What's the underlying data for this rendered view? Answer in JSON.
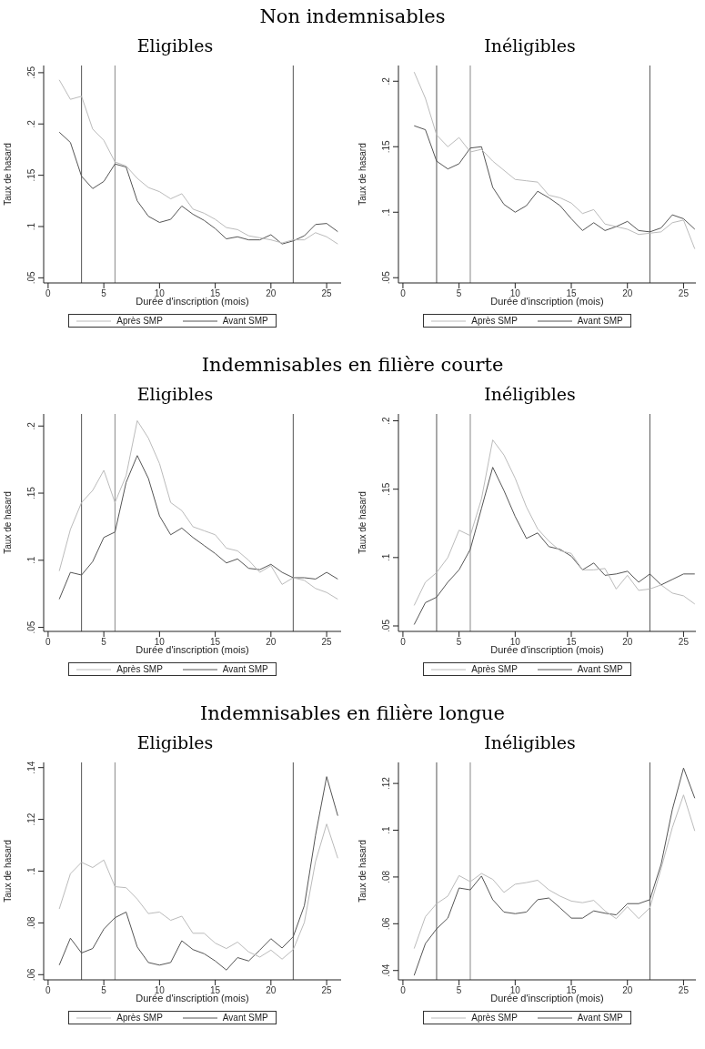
{
  "chart_data": [
    {
      "type": "line",
      "annotations": [
        "Non indemnisables"
      ],
      "title": "Eligibles",
      "xlabel": "Durée d'inscription (mois)",
      "ylabel": "Taux de hasard",
      "marker": "none",
      "legend": "bottom",
      "x": [
        1,
        2,
        3,
        4,
        5,
        6,
        7,
        8,
        9,
        10,
        11,
        12,
        13,
        14,
        15,
        16,
        17,
        18,
        19,
        20,
        21,
        22,
        23,
        24,
        25,
        26
      ],
      "xlim": [
        -0.4,
        26.3
      ],
      "xticks": [
        0,
        5,
        10,
        15,
        20,
        25
      ],
      "ylim": [
        0.045,
        0.257
      ],
      "yticks": [
        {
          "value": 0.05,
          "label": ".05"
        },
        {
          "value": 0.1,
          "label": ".1"
        },
        {
          "value": 0.15,
          "label": ".15"
        },
        {
          "value": 0.2,
          "label": ".2"
        },
        {
          "value": 0.25,
          "label": ".25"
        }
      ],
      "ref_lines": [
        {
          "axis": "x",
          "value": 3,
          "color": "#555555"
        },
        {
          "axis": "x",
          "value": 6,
          "color": "#888888"
        },
        {
          "axis": "x",
          "value": 22,
          "color": "#555555"
        }
      ],
      "series": [
        {
          "name": "Avant SMP",
          "color": "#555555",
          "values": [
            0.192,
            0.182,
            0.149,
            0.137,
            0.144,
            0.161,
            0.158,
            0.125,
            0.11,
            0.104,
            0.107,
            0.12,
            0.112,
            0.106,
            0.098,
            0.088,
            0.09,
            0.087,
            0.087,
            0.092,
            0.083,
            0.086,
            0.091,
            0.102,
            0.103,
            0.095
          ]
        },
        {
          "name": "Après SMP",
          "color": "#bbbbbb",
          "values": [
            0.243,
            0.224,
            0.227,
            0.195,
            0.184,
            0.163,
            0.159,
            0.147,
            0.138,
            0.134,
            0.127,
            0.132,
            0.117,
            0.113,
            0.107,
            0.099,
            0.097,
            0.091,
            0.089,
            0.087,
            0.084,
            0.087,
            0.087,
            0.094,
            0.09,
            0.083
          ]
        }
      ]
    },
    {
      "type": "line",
      "title": "Inéligibles",
      "xlabel": "Durée d'inscription (mois)",
      "ylabel": "Taux de hasard",
      "marker": "none",
      "legend": "bottom",
      "x": [
        1,
        2,
        3,
        4,
        5,
        6,
        7,
        8,
        9,
        10,
        11,
        12,
        13,
        14,
        15,
        16,
        17,
        18,
        19,
        20,
        21,
        22,
        23,
        24,
        25,
        26
      ],
      "xlim": [
        -0.4,
        26.1
      ],
      "xticks": [
        0,
        5,
        10,
        15,
        20,
        25
      ],
      "ylim": [
        0.046,
        0.212
      ],
      "yticks": [
        {
          "value": 0.05,
          "label": ".05"
        },
        {
          "value": 0.1,
          "label": ".1"
        },
        {
          "value": 0.15,
          "label": ".15"
        },
        {
          "value": 0.2,
          "label": ".2"
        }
      ],
      "ref_lines": [
        {
          "axis": "x",
          "value": 3,
          "color": "#555555"
        },
        {
          "axis": "x",
          "value": 6,
          "color": "#888888"
        },
        {
          "axis": "x",
          "value": 22,
          "color": "#555555"
        }
      ],
      "series": [
        {
          "name": "Avant SMP",
          "color": "#555555",
          "values": [
            0.166,
            0.163,
            0.139,
            0.133,
            0.137,
            0.149,
            0.15,
            0.119,
            0.106,
            0.1,
            0.105,
            0.116,
            0.111,
            0.105,
            0.095,
            0.086,
            0.092,
            0.086,
            0.089,
            0.093,
            0.086,
            0.085,
            0.088,
            0.098,
            0.095,
            0.087
          ]
        },
        {
          "name": "Après SMP",
          "color": "#bbbbbb",
          "values": [
            0.207,
            0.187,
            0.159,
            0.15,
            0.157,
            0.146,
            0.148,
            0.139,
            0.132,
            0.125,
            0.124,
            0.123,
            0.113,
            0.111,
            0.107,
            0.099,
            0.102,
            0.091,
            0.089,
            0.087,
            0.083,
            0.084,
            0.085,
            0.092,
            0.094,
            0.072
          ]
        }
      ]
    },
    {
      "type": "line",
      "annotations": [
        "Indemnisables en filière courte"
      ],
      "title": "Eligibles",
      "xlabel": "Durée d'inscription (mois)",
      "ylabel": "Taux de hasard",
      "marker": "none",
      "legend": "bottom",
      "x": [
        1,
        2,
        3,
        4,
        5,
        6,
        7,
        8,
        9,
        10,
        11,
        12,
        13,
        14,
        15,
        16,
        17,
        18,
        19,
        20,
        21,
        22,
        23,
        24,
        25,
        26
      ],
      "xlim": [
        -0.4,
        26.3
      ],
      "xticks": [
        0,
        5,
        10,
        15,
        20,
        25
      ],
      "ylim": [
        0.047,
        0.209
      ],
      "yticks": [
        {
          "value": 0.05,
          "label": ".05"
        },
        {
          "value": 0.1,
          "label": ".1"
        },
        {
          "value": 0.15,
          "label": ".15"
        },
        {
          "value": 0.2,
          "label": ".2"
        }
      ],
      "ref_lines": [
        {
          "axis": "x",
          "value": 3,
          "color": "#555555"
        },
        {
          "axis": "x",
          "value": 6,
          "color": "#888888"
        },
        {
          "axis": "x",
          "value": 22,
          "color": "#555555"
        }
      ],
      "series": [
        {
          "name": "Avant SMP",
          "color": "#555555",
          "values": [
            0.071,
            0.091,
            0.089,
            0.099,
            0.117,
            0.121,
            0.158,
            0.178,
            0.161,
            0.133,
            0.119,
            0.124,
            0.117,
            0.111,
            0.105,
            0.098,
            0.101,
            0.094,
            0.093,
            0.097,
            0.091,
            0.087,
            0.087,
            0.086,
            0.091,
            0.086
          ]
        },
        {
          "name": "Après SMP",
          "color": "#bbbbbb",
          "values": [
            0.092,
            0.123,
            0.143,
            0.152,
            0.167,
            0.143,
            0.163,
            0.204,
            0.191,
            0.172,
            0.143,
            0.137,
            0.125,
            0.122,
            0.119,
            0.109,
            0.107,
            0.1,
            0.091,
            0.096,
            0.082,
            0.087,
            0.085,
            0.079,
            0.076,
            0.071
          ]
        }
      ]
    },
    {
      "type": "line",
      "title": "Inéligibles",
      "xlabel": "Durée d'inscription (mois)",
      "ylabel": "Taux de hasard",
      "marker": "none",
      "legend": "bottom",
      "x": [
        1,
        2,
        3,
        4,
        5,
        6,
        7,
        8,
        9,
        10,
        11,
        12,
        13,
        14,
        15,
        16,
        17,
        18,
        19,
        20,
        21,
        22,
        23,
        24,
        25,
        26
      ],
      "xlim": [
        -0.4,
        26.1
      ],
      "xticks": [
        0,
        5,
        10,
        15,
        20,
        25
      ],
      "ylim": [
        0.046,
        0.205
      ],
      "yticks": [
        {
          "value": 0.05,
          "label": ".05"
        },
        {
          "value": 0.1,
          "label": ".1"
        },
        {
          "value": 0.15,
          "label": ".15"
        },
        {
          "value": 0.2,
          "label": ".2"
        }
      ],
      "ref_lines": [
        {
          "axis": "x",
          "value": 3,
          "color": "#555555"
        },
        {
          "axis": "x",
          "value": 6,
          "color": "#888888"
        },
        {
          "axis": "x",
          "value": 22,
          "color": "#555555"
        }
      ],
      "series": [
        {
          "name": "Avant SMP",
          "color": "#555555",
          "values": [
            0.051,
            0.067,
            0.071,
            0.082,
            0.091,
            0.106,
            0.136,
            0.166,
            0.149,
            0.13,
            0.114,
            0.118,
            0.108,
            0.106,
            0.101,
            0.091,
            0.096,
            0.087,
            0.088,
            0.09,
            0.082,
            0.088,
            0.08,
            0.084,
            0.088,
            0.088
          ]
        },
        {
          "name": "Après SMP",
          "color": "#bbbbbb",
          "values": [
            0.065,
            0.082,
            0.089,
            0.1,
            0.12,
            0.116,
            0.143,
            0.186,
            0.175,
            0.158,
            0.137,
            0.121,
            0.112,
            0.105,
            0.103,
            0.091,
            0.091,
            0.092,
            0.077,
            0.087,
            0.076,
            0.077,
            0.08,
            0.074,
            0.072,
            0.066
          ]
        }
      ]
    },
    {
      "type": "line",
      "annotations": [
        "Indemnisables en filière longue"
      ],
      "title": "Eligibles",
      "xlabel": "Durée d'inscription (mois)",
      "ylabel": "Taux de hasard",
      "marker": "none",
      "legend": "bottom",
      "x": [
        1,
        2,
        3,
        4,
        5,
        6,
        7,
        8,
        9,
        10,
        11,
        12,
        13,
        14,
        15,
        16,
        17,
        18,
        19,
        20,
        21,
        22,
        23,
        24,
        25,
        26
      ],
      "xlim": [
        -0.4,
        26.3
      ],
      "xticks": [
        0,
        5,
        10,
        15,
        20,
        25
      ],
      "ylim": [
        0.058,
        0.142
      ],
      "yticks": [
        {
          "value": 0.06,
          "label": ".06"
        },
        {
          "value": 0.08,
          "label": ".08"
        },
        {
          "value": 0.1,
          "label": ".1"
        },
        {
          "value": 0.12,
          "label": ".12"
        },
        {
          "value": 0.14,
          "label": ".14"
        }
      ],
      "ref_lines": [
        {
          "axis": "x",
          "value": 3,
          "color": "#555555"
        },
        {
          "axis": "x",
          "value": 6,
          "color": "#888888"
        },
        {
          "axis": "x",
          "value": 22,
          "color": "#555555"
        }
      ],
      "series": [
        {
          "name": "Avant SMP",
          "color": "#555555",
          "values": [
            0.0637,
            0.0741,
            0.0684,
            0.0701,
            0.0776,
            0.082,
            0.0842,
            0.0707,
            0.0647,
            0.0637,
            0.0647,
            0.0731,
            0.0697,
            0.0681,
            0.0653,
            0.0618,
            0.0666,
            0.0653,
            0.0695,
            0.0739,
            0.0703,
            0.0747,
            0.0867,
            0.1138,
            0.1365,
            0.1214
          ]
        },
        {
          "name": "Après SMP",
          "color": "#bbbbbb",
          "values": [
            0.0854,
            0.099,
            0.1034,
            0.1014,
            0.1043,
            0.094,
            0.0936,
            0.0892,
            0.0836,
            0.0842,
            0.081,
            0.0826,
            0.076,
            0.076,
            0.0722,
            0.0701,
            0.0726,
            0.0688,
            0.0668,
            0.0695,
            0.066,
            0.0697,
            0.0802,
            0.1037,
            0.1182,
            0.105
          ]
        }
      ]
    },
    {
      "type": "line",
      "title": "Inéligibles",
      "xlabel": "Durée d'inscription (mois)",
      "ylabel": "Taux de hasard",
      "marker": "none",
      "legend": "bottom",
      "x": [
        1,
        2,
        3,
        4,
        5,
        6,
        7,
        8,
        9,
        10,
        11,
        12,
        13,
        14,
        15,
        16,
        17,
        18,
        19,
        20,
        21,
        22,
        23,
        24,
        25,
        26
      ],
      "xlim": [
        -0.4,
        26.1
      ],
      "xticks": [
        0,
        5,
        10,
        15,
        20,
        25
      ],
      "ylim": [
        0.036,
        0.129
      ],
      "yticks": [
        {
          "value": 0.04,
          "label": ".04"
        },
        {
          "value": 0.06,
          "label": ".06"
        },
        {
          "value": 0.08,
          "label": ".08"
        },
        {
          "value": 0.1,
          "label": ".1"
        },
        {
          "value": 0.12,
          "label": ".12"
        }
      ],
      "ref_lines": [
        {
          "axis": "x",
          "value": 3,
          "color": "#555555"
        },
        {
          "axis": "x",
          "value": 6,
          "color": "#888888"
        },
        {
          "axis": "x",
          "value": 22,
          "color": "#555555"
        }
      ],
      "series": [
        {
          "name": "Avant SMP",
          "color": "#555555",
          "values": [
            0.0379,
            0.0515,
            0.0578,
            0.0624,
            0.0753,
            0.0745,
            0.0804,
            0.0703,
            0.065,
            0.0643,
            0.065,
            0.0703,
            0.071,
            0.0668,
            0.0624,
            0.0624,
            0.0655,
            0.0645,
            0.0638,
            0.0686,
            0.0686,
            0.0703,
            0.0854,
            0.1088,
            0.1266,
            0.1137
          ]
        },
        {
          "name": "Après SMP",
          "color": "#bbbbbb",
          "values": [
            0.0494,
            0.063,
            0.0686,
            0.0718,
            0.0806,
            0.078,
            0.0815,
            0.079,
            0.0734,
            0.0769,
            0.0776,
            0.0786,
            0.0745,
            0.0718,
            0.0697,
            0.069,
            0.07,
            0.0655,
            0.0622,
            0.0673,
            0.0622,
            0.0668,
            0.0836,
            0.1011,
            0.1151,
            0.0997
          ]
        }
      ]
    }
  ]
}
